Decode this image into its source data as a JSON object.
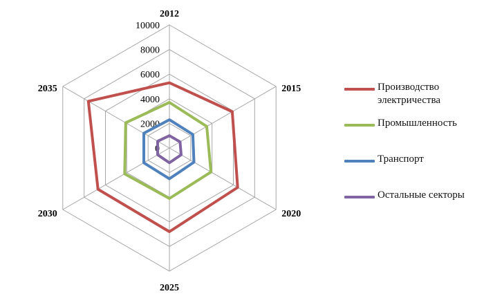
{
  "chart_data": {
    "type": "radar",
    "categories": [
      "2012",
      "2015",
      "2020",
      "2025",
      "2030",
      "2035"
    ],
    "rticks": [
      "0",
      "2000",
      "4000",
      "6000",
      "8000",
      "10000"
    ],
    "rlim": [
      0,
      10000
    ],
    "grid": true,
    "legend_position": "right",
    "series": [
      {
        "name": "Производство электричества",
        "color": "#c0504d",
        "values": [
          5300,
          5900,
          6400,
          6800,
          6700,
          7600
        ]
      },
      {
        "name": "Промышленность",
        "color": "#9bbb59",
        "values": [
          3700,
          3500,
          3900,
          4100,
          4200,
          4100
        ]
      },
      {
        "name": "Транспорт",
        "color": "#4f81bd",
        "values": [
          2300,
          2200,
          2300,
          2500,
          2400,
          2400
        ]
      },
      {
        "name": "Остальные секторы",
        "color": "#8064a2",
        "values": [
          1000,
          1000,
          1100,
          1200,
          1100,
          1100
        ]
      }
    ]
  }
}
